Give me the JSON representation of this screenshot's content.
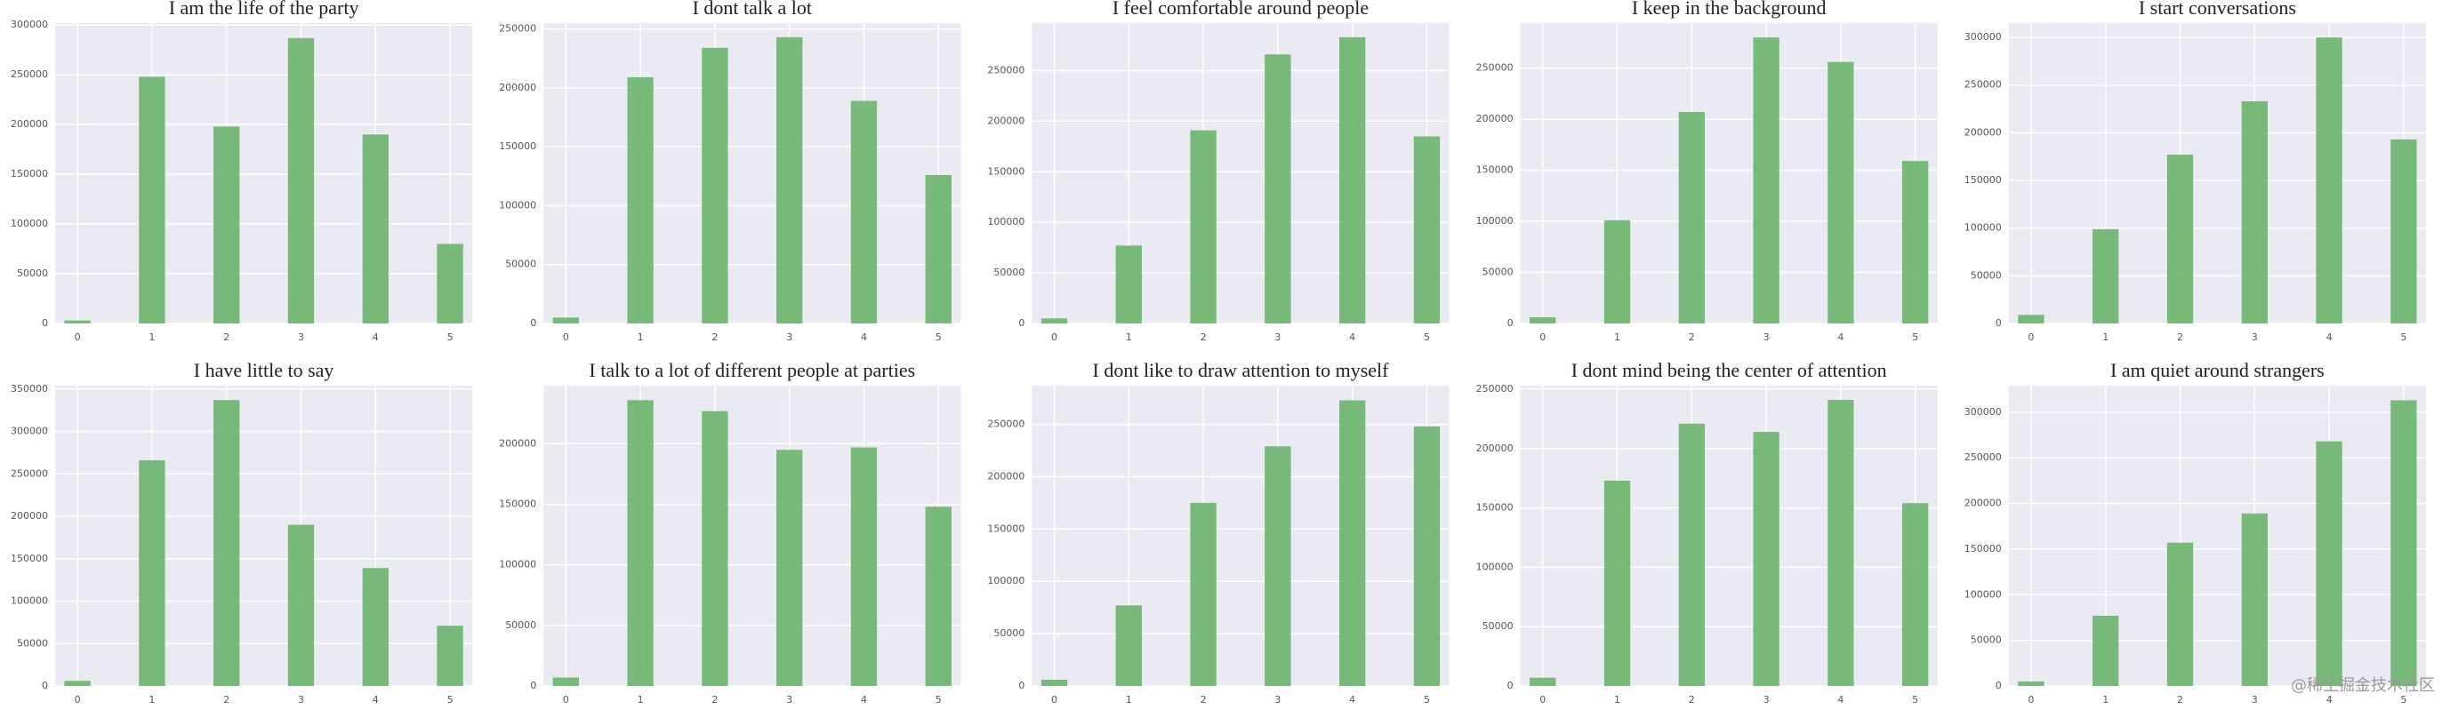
{
  "chart_data": [
    {
      "type": "bar",
      "title": "I am the life of the party",
      "x": [
        0,
        1,
        2,
        3,
        4,
        5
      ],
      "values": [
        3000,
        248000,
        198000,
        287000,
        190000,
        80000
      ],
      "color": "#6ab46a",
      "xlim": [
        -0.3,
        5.3
      ],
      "xticks": [
        0,
        1,
        2,
        3,
        4,
        5
      ],
      "ylim": [
        0,
        302000
      ],
      "yticks": [
        0,
        50000,
        100000,
        150000,
        200000,
        250000,
        300000
      ],
      "grid": true
    },
    {
      "type": "bar",
      "title": "I dont talk a lot",
      "x": [
        0,
        1,
        2,
        3,
        4,
        5
      ],
      "values": [
        5000,
        209000,
        234000,
        243000,
        189000,
        126000
      ],
      "color": "#6ab46a",
      "xlim": [
        -0.3,
        5.3
      ],
      "xticks": [
        0,
        1,
        2,
        3,
        4,
        5
      ],
      "ylim": [
        0,
        255000
      ],
      "yticks": [
        0,
        50000,
        100000,
        150000,
        200000,
        250000
      ],
      "grid": true
    },
    {
      "type": "bar",
      "title": "I feel comfortable around people",
      "x": [
        0,
        1,
        2,
        3,
        4,
        5
      ],
      "values": [
        5000,
        77000,
        191000,
        266000,
        283000,
        185000
      ],
      "color": "#6ab46a",
      "xlim": [
        -0.3,
        5.3
      ],
      "xticks": [
        0,
        1,
        2,
        3,
        4,
        5
      ],
      "ylim": [
        0,
        297000
      ],
      "yticks": [
        0,
        50000,
        100000,
        150000,
        200000,
        250000
      ],
      "grid": true
    },
    {
      "type": "bar",
      "title": "I keep in the background",
      "x": [
        0,
        1,
        2,
        3,
        4,
        5
      ],
      "values": [
        6000,
        101000,
        207000,
        280000,
        256000,
        159000
      ],
      "color": "#6ab46a",
      "xlim": [
        -0.3,
        5.3
      ],
      "xticks": [
        0,
        1,
        2,
        3,
        4,
        5
      ],
      "ylim": [
        0,
        294000
      ],
      "yticks": [
        0,
        50000,
        100000,
        150000,
        200000,
        250000
      ],
      "grid": true
    },
    {
      "type": "bar",
      "title": "I start conversations",
      "x": [
        0,
        1,
        2,
        3,
        4,
        5
      ],
      "values": [
        9000,
        99000,
        177000,
        233000,
        300000,
        193000
      ],
      "color": "#6ab46a",
      "xlim": [
        -0.3,
        5.3
      ],
      "xticks": [
        0,
        1,
        2,
        3,
        4,
        5
      ],
      "ylim": [
        0,
        315000
      ],
      "yticks": [
        0,
        50000,
        100000,
        150000,
        200000,
        250000,
        300000
      ],
      "grid": true
    },
    {
      "type": "bar",
      "title": "I have little to say",
      "x": [
        0,
        1,
        2,
        3,
        4,
        5
      ],
      "values": [
        6000,
        266000,
        337000,
        190000,
        139000,
        71000
      ],
      "color": "#6ab46a",
      "xlim": [
        -0.3,
        5.3
      ],
      "xticks": [
        0,
        1,
        2,
        3,
        4,
        5
      ],
      "ylim": [
        0,
        354000
      ],
      "yticks": [
        0,
        50000,
        100000,
        150000,
        200000,
        250000,
        300000,
        350000
      ],
      "grid": true
    },
    {
      "type": "bar",
      "title": "I talk to a lot of different people at parties",
      "x": [
        0,
        1,
        2,
        3,
        4,
        5
      ],
      "values": [
        7000,
        236000,
        227000,
        195000,
        197000,
        148000
      ],
      "color": "#6ab46a",
      "xlim": [
        -0.3,
        5.3
      ],
      "xticks": [
        0,
        1,
        2,
        3,
        4,
        5
      ],
      "ylim": [
        0,
        248000
      ],
      "yticks": [
        0,
        50000,
        100000,
        150000,
        200000
      ],
      "grid": true
    },
    {
      "type": "bar",
      "title": "I dont like to draw attention to myself",
      "x": [
        0,
        1,
        2,
        3,
        4,
        5
      ],
      "values": [
        6000,
        77000,
        175000,
        229000,
        273000,
        248000
      ],
      "color": "#6ab46a",
      "xlim": [
        -0.3,
        5.3
      ],
      "xticks": [
        0,
        1,
        2,
        3,
        4,
        5
      ],
      "ylim": [
        0,
        287000
      ],
      "yticks": [
        0,
        50000,
        100000,
        150000,
        200000,
        250000
      ],
      "grid": true
    },
    {
      "type": "bar",
      "title": "I dont mind being the center of attention",
      "x": [
        0,
        1,
        2,
        3,
        4,
        5
      ],
      "values": [
        7000,
        173000,
        221000,
        214000,
        241000,
        154000
      ],
      "color": "#6ab46a",
      "xlim": [
        -0.3,
        5.3
      ],
      "xticks": [
        0,
        1,
        2,
        3,
        4,
        5
      ],
      "ylim": [
        0,
        253000
      ],
      "yticks": [
        0,
        50000,
        100000,
        150000,
        200000,
        250000
      ],
      "grid": true
    },
    {
      "type": "bar",
      "title": "I am quiet around strangers",
      "x": [
        0,
        1,
        2,
        3,
        4,
        5
      ],
      "values": [
        5000,
        77000,
        157000,
        189000,
        268000,
        313000
      ],
      "color": "#6ab46a",
      "xlim": [
        -0.3,
        5.3
      ],
      "xticks": [
        0,
        1,
        2,
        3,
        4,
        5
      ],
      "ylim": [
        0,
        329000
      ],
      "yticks": [
        0,
        50000,
        100000,
        150000,
        200000,
        250000,
        300000
      ],
      "grid": true
    }
  ],
  "watermark": "@稀土掘金技术社区"
}
